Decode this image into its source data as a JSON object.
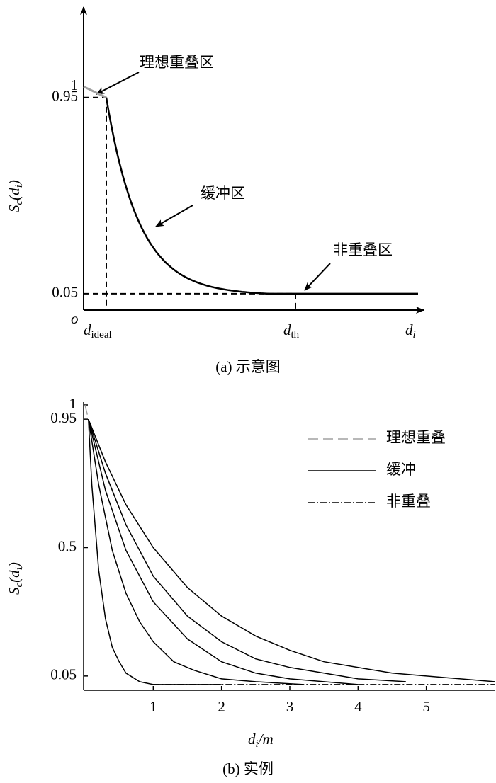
{
  "chart_data": [
    {
      "type": "schematic",
      "ylabel": [
        "S",
        "c",
        "(d",
        "i",
        ")"
      ],
      "ylim": [
        -0.025,
        1.355
      ],
      "yticks": [
        0.05,
        0.95,
        1
      ],
      "origin_label": "o",
      "x_markers": [
        [
          "d",
          "ideal"
        ],
        [
          "d",
          "th"
        ]
      ],
      "xlabel": [
        "d",
        "i"
      ],
      "annotations": [
        "理想重叠区",
        "缓冲区",
        "非重叠区"
      ],
      "ideal_color": "#a0a0a0",
      "curve_color": "#000000",
      "caption": "(a) 示意图"
    },
    {
      "type": "line",
      "ylabel": [
        "S",
        "c",
        "(d",
        "i",
        ")"
      ],
      "xlabel": [
        "d",
        "i",
        "/m"
      ],
      "xlim": [
        0,
        6
      ],
      "ylim": [
        0,
        1
      ],
      "xticks": [
        1,
        2,
        3,
        4,
        5
      ],
      "yticks": [
        0.05,
        0.5,
        0.95,
        1
      ],
      "legend": "upper right",
      "series": [
        {
          "name": "理想重叠",
          "color": "#a0a0a0",
          "dash": "dashed",
          "x": [
            0,
            0.05
          ],
          "values": [
            1,
            0.95
          ]
        },
        {
          "name": "缓冲",
          "color": "#000000",
          "dash": "solid",
          "x": [
            0.05,
            0.1,
            0.2,
            0.3,
            0.4,
            0.5,
            0.6,
            0.8,
            1.0,
            1.5,
            2.0
          ],
          "values": [
            0.95,
            0.72,
            0.42,
            0.25,
            0.15,
            0.1,
            0.06,
            0.03,
            0.02,
            0.02,
            0.02
          ]
        },
        {
          "color": "#000000",
          "dash": "solid",
          "x": [
            0.05,
            0.2,
            0.4,
            0.6,
            0.8,
            1.0,
            1.3,
            1.6,
            2.0,
            2.5,
            3.2
          ],
          "values": [
            0.95,
            0.72,
            0.49,
            0.34,
            0.24,
            0.17,
            0.1,
            0.07,
            0.04,
            0.03,
            0.02
          ]
        },
        {
          "color": "#000000",
          "dash": "solid",
          "x": [
            0.05,
            0.3,
            0.6,
            1.0,
            1.5,
            2.0,
            2.5,
            3.0,
            3.5,
            4.0
          ],
          "values": [
            0.95,
            0.7,
            0.49,
            0.31,
            0.18,
            0.1,
            0.06,
            0.04,
            0.03,
            0.02
          ]
        },
        {
          "color": "#000000",
          "dash": "solid",
          "x": [
            0.05,
            0.3,
            0.6,
            1.0,
            1.5,
            2.0,
            2.5,
            3.0,
            3.5,
            4.0,
            4.7
          ],
          "values": [
            0.95,
            0.76,
            0.58,
            0.4,
            0.26,
            0.17,
            0.11,
            0.08,
            0.06,
            0.04,
            0.03
          ]
        },
        {
          "color": "#000000",
          "dash": "solid",
          "x": [
            0.05,
            0.3,
            0.6,
            1.0,
            1.5,
            2.0,
            2.5,
            3.0,
            3.5,
            4.0,
            4.5,
            5.0,
            6.0
          ],
          "values": [
            0.95,
            0.8,
            0.65,
            0.5,
            0.36,
            0.26,
            0.19,
            0.14,
            0.1,
            0.08,
            0.06,
            0.05,
            0.03
          ]
        },
        {
          "name": "非重叠",
          "color": "#000000",
          "dash": "dashdot",
          "x": [
            1.0,
            6.0
          ],
          "values": [
            0.02,
            0.02
          ]
        }
      ],
      "caption": "(b) 实例"
    }
  ]
}
